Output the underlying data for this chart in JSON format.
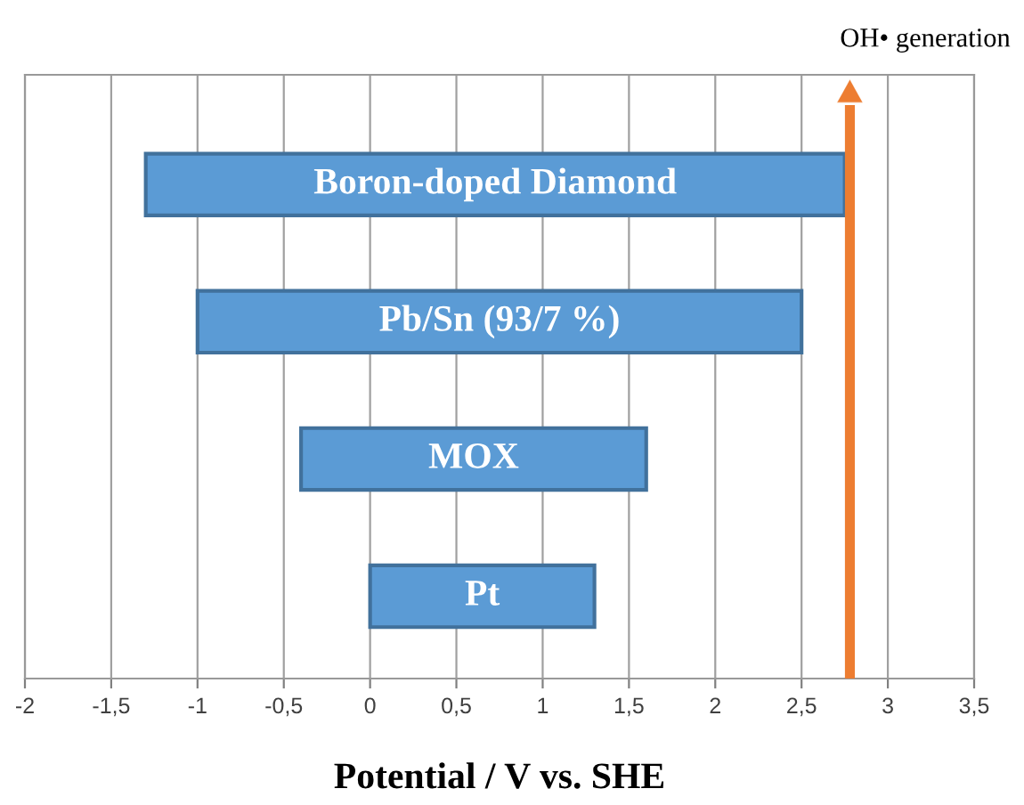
{
  "chart_data": {
    "type": "bar",
    "orientation": "horizontal",
    "categories": [
      "Boron-doped Diamond",
      "Pb/Sn (93/7 %)",
      "MOX",
      "Pt"
    ],
    "base": [
      -1.3,
      -1.0,
      -0.4,
      0
    ],
    "values": [
      4.05,
      3.5,
      2.0,
      1.3
    ],
    "color": "#5b9bd5",
    "xlabel": "Potential / V vs. SHE",
    "xlim": [
      -2,
      3.5
    ],
    "xticks": [
      -2,
      {
        "value": -1.5,
        "label": "-1,5"
      },
      -1,
      {
        "value": -0.5,
        "label": "-0,5"
      },
      0,
      {
        "value": 0.5,
        "label": "0,5"
      },
      1,
      {
        "value": 1.5,
        "label": "1,5"
      },
      2,
      {
        "value": 2.5,
        "label": "2,5"
      },
      3,
      {
        "value": 3.5,
        "label": "3,5"
      }
    ],
    "ref_lines": [
      {
        "axis": "x",
        "value": 2.78,
        "label": "OH• generation",
        "color": "#ed7d31"
      }
    ],
    "grid": "x",
    "tick_labels": "x"
  }
}
